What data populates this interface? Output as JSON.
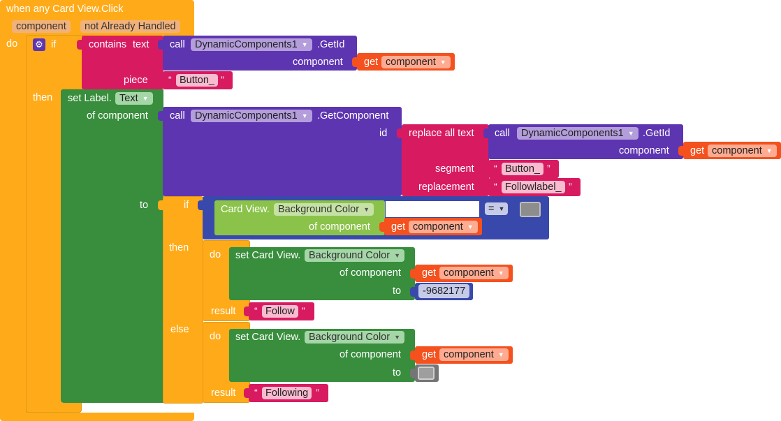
{
  "event": {
    "title": "when any Card View.Click",
    "params": [
      "component",
      "not Already Handled"
    ],
    "do_label": "do"
  },
  "outer_if": {
    "gear_icon": "gear-icon",
    "if_label": "if",
    "then_label": "then",
    "contains": {
      "label": "contains",
      "mode": "text",
      "call": {
        "label": "call",
        "component": "DynamicComponents1",
        "method": ".GetId",
        "arg_label": "component",
        "get_label": "get",
        "get_var": "component"
      },
      "piece_label": "piece",
      "piece_value": "Button_"
    }
  },
  "set_label": {
    "prefix": "set Label.",
    "property": "Text",
    "of_component_label": "of component",
    "to_label": "to",
    "get_component_call": {
      "label": "call",
      "component": "DynamicComponents1",
      "method": ".GetComponent",
      "id_label": "id"
    },
    "replace": {
      "label": "replace all text",
      "call_label": "call",
      "component": "DynamicComponents1",
      "method": ".GetId",
      "arg_label": "component",
      "get_label": "get",
      "get_var": "component",
      "segment_label": "segment",
      "segment_value": "Button_",
      "replacement_label": "replacement",
      "replacement_value": "Followlabel_"
    }
  },
  "ternary": {
    "if_label": "if",
    "then_label": "then",
    "else_label": "else",
    "compare": {
      "getter_prefix": "Card View.",
      "getter_property": "Background Color",
      "of_component_label": "of component",
      "get_label": "get",
      "get_var": "component",
      "operator": "="
    },
    "then_branch": {
      "do_label": "do",
      "set_prefix": "set Card View.",
      "property": "Background Color",
      "of_component_label": "of component",
      "get_label": "get",
      "get_var": "component",
      "to_label": "to",
      "to_value": "-9682177",
      "result_label": "result",
      "result_value": "Follow"
    },
    "else_branch": {
      "do_label": "do",
      "set_prefix": "set Card View.",
      "property": "Background Color",
      "of_component_label": "of component",
      "get_label": "get",
      "get_var": "component",
      "to_label": "to",
      "result_label": "result",
      "result_value": "Following"
    }
  },
  "colors": {
    "event": "#ffab19",
    "text": "#d81b60",
    "component_call": "#5e35b1",
    "variable": "#f4511e",
    "setter": "#388e3c",
    "getter": "#8bc34a",
    "logic": "#3949ab"
  }
}
